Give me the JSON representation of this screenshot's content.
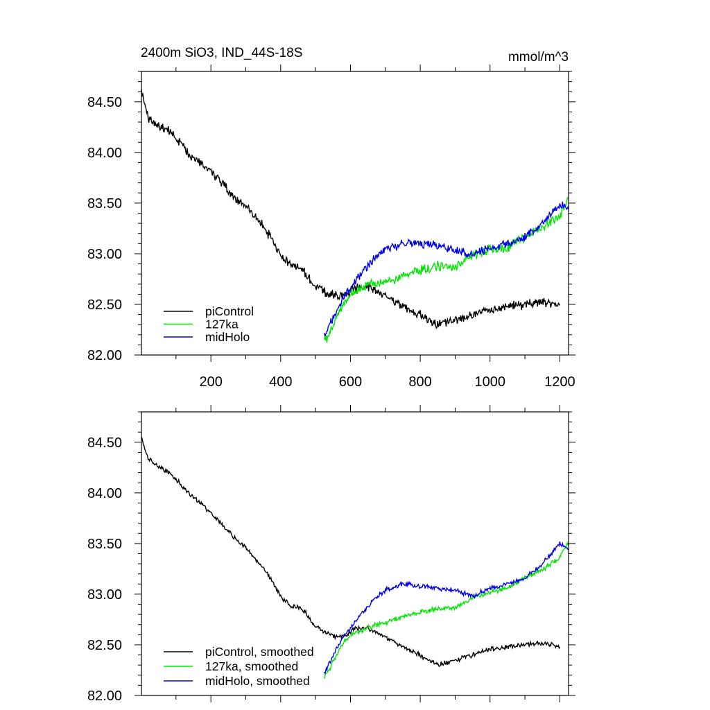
{
  "header": {
    "title": "2400m SiO3, IND_44S-18S",
    "units": "mmol/m^3"
  },
  "colors": {
    "piControl": "#000000",
    "127ka": "#00e600",
    "midHolo": "#0000ee",
    "axis": "#000000",
    "background": "#ffffff"
  },
  "chart_data": [
    {
      "type": "line",
      "title": "2400m SiO3, IND_44S-18S",
      "units": "mmol/m^3",
      "xlim": [
        1,
        1225
      ],
      "ylim": [
        82.0,
        84.8
      ],
      "x_ticks": [
        200,
        400,
        600,
        800,
        1000,
        1200
      ],
      "x_tick_labels": [
        "200",
        "400",
        "600",
        "800",
        "1000",
        "1200"
      ],
      "y_ticks": [
        82.0,
        82.5,
        83.0,
        83.5,
        84.0,
        84.5
      ],
      "y_tick_labels": [
        "82.00",
        "82.50",
        "83.00",
        "83.50",
        "84.00",
        "84.50"
      ],
      "legend_position": "bottom-left",
      "series": [
        {
          "name": "piControl",
          "color": "#000000",
          "x": [
            1,
            20,
            50,
            80,
            110,
            140,
            170,
            200,
            230,
            260,
            300,
            330,
            360,
            380,
            400,
            430,
            460,
            480,
            500,
            530,
            560,
            590,
            610,
            650,
            700,
            750,
            800,
            830,
            850,
            900,
            950,
            1000,
            1050,
            1100,
            1150,
            1200
          ],
          "y": [
            84.6,
            84.33,
            84.26,
            84.22,
            84.1,
            83.98,
            83.9,
            83.81,
            83.7,
            83.58,
            83.46,
            83.36,
            83.22,
            83.1,
            82.98,
            82.88,
            82.86,
            82.76,
            82.68,
            82.62,
            82.58,
            82.6,
            82.65,
            82.68,
            82.58,
            82.48,
            82.4,
            82.33,
            82.3,
            82.35,
            82.4,
            82.45,
            82.48,
            82.5,
            82.53,
            82.49
          ]
        },
        {
          "name": "127ka",
          "color": "#00e600",
          "x": [
            525,
            540,
            560,
            580,
            600,
            630,
            660,
            700,
            750,
            800,
            850,
            900,
            950,
            1000,
            1050,
            1100,
            1150,
            1200,
            1225
          ],
          "y": [
            82.12,
            82.22,
            82.38,
            82.5,
            82.6,
            82.66,
            82.7,
            82.72,
            82.78,
            82.84,
            82.88,
            82.86,
            82.98,
            83.04,
            83.06,
            83.16,
            83.26,
            83.38,
            83.54
          ]
        },
        {
          "name": "midHolo",
          "color": "#0000ee",
          "x": [
            525,
            540,
            560,
            580,
            600,
            630,
            660,
            700,
            750,
            800,
            850,
            900,
            950,
            1000,
            1050,
            1100,
            1150,
            1200,
            1225
          ],
          "y": [
            82.2,
            82.3,
            82.44,
            82.56,
            82.66,
            82.8,
            82.92,
            83.04,
            83.1,
            83.1,
            83.08,
            83.04,
            82.98,
            83.06,
            83.1,
            83.16,
            83.3,
            83.5,
            83.44
          ]
        }
      ]
    },
    {
      "type": "line",
      "title": "",
      "xlim": [
        1,
        1225
      ],
      "ylim": [
        82.0,
        84.8
      ],
      "x_ticks": [
        200,
        400,
        600,
        800,
        1000,
        1200
      ],
      "x_tick_labels": [],
      "y_ticks": [
        82.0,
        82.5,
        83.0,
        83.5,
        84.0,
        84.5
      ],
      "y_tick_labels": [
        "82.00",
        "82.50",
        "83.00",
        "83.50",
        "84.00",
        "84.50"
      ],
      "legend_position": "bottom-left",
      "series": [
        {
          "name": "piControl, smoothed",
          "color": "#000000",
          "x": [
            1,
            20,
            50,
            80,
            110,
            140,
            170,
            200,
            230,
            260,
            300,
            330,
            360,
            380,
            400,
            430,
            460,
            480,
            500,
            530,
            560,
            590,
            610,
            650,
            700,
            750,
            800,
            830,
            850,
            900,
            950,
            1000,
            1050,
            1100,
            1150,
            1200
          ],
          "y": [
            84.54,
            84.34,
            84.26,
            84.2,
            84.1,
            83.98,
            83.9,
            83.8,
            83.7,
            83.58,
            83.46,
            83.34,
            83.22,
            83.1,
            82.98,
            82.88,
            82.86,
            82.78,
            82.68,
            82.62,
            82.58,
            82.6,
            82.66,
            82.66,
            82.58,
            82.48,
            82.4,
            82.33,
            82.3,
            82.35,
            82.4,
            82.46,
            82.48,
            82.5,
            82.52,
            82.48
          ]
        },
        {
          "name": "127ka, smoothed",
          "color": "#00e600",
          "x": [
            525,
            540,
            560,
            580,
            600,
            630,
            660,
            700,
            750,
            800,
            850,
            900,
            950,
            1000,
            1050,
            1100,
            1150,
            1200,
            1225
          ],
          "y": [
            82.18,
            82.26,
            82.4,
            82.52,
            82.6,
            82.64,
            82.68,
            82.72,
            82.78,
            82.82,
            82.86,
            82.86,
            82.96,
            83.02,
            83.06,
            83.16,
            83.24,
            83.36,
            83.52
          ]
        },
        {
          "name": "midHolo, smoothed",
          "color": "#0000ee",
          "x": [
            525,
            540,
            560,
            580,
            600,
            630,
            660,
            700,
            750,
            800,
            850,
            900,
            950,
            1000,
            1050,
            1100,
            1150,
            1200,
            1225
          ],
          "y": [
            82.22,
            82.32,
            82.46,
            82.58,
            82.66,
            82.8,
            82.92,
            83.04,
            83.1,
            83.08,
            83.06,
            83.04,
            82.98,
            83.06,
            83.1,
            83.16,
            83.3,
            83.5,
            83.44
          ]
        }
      ]
    }
  ]
}
